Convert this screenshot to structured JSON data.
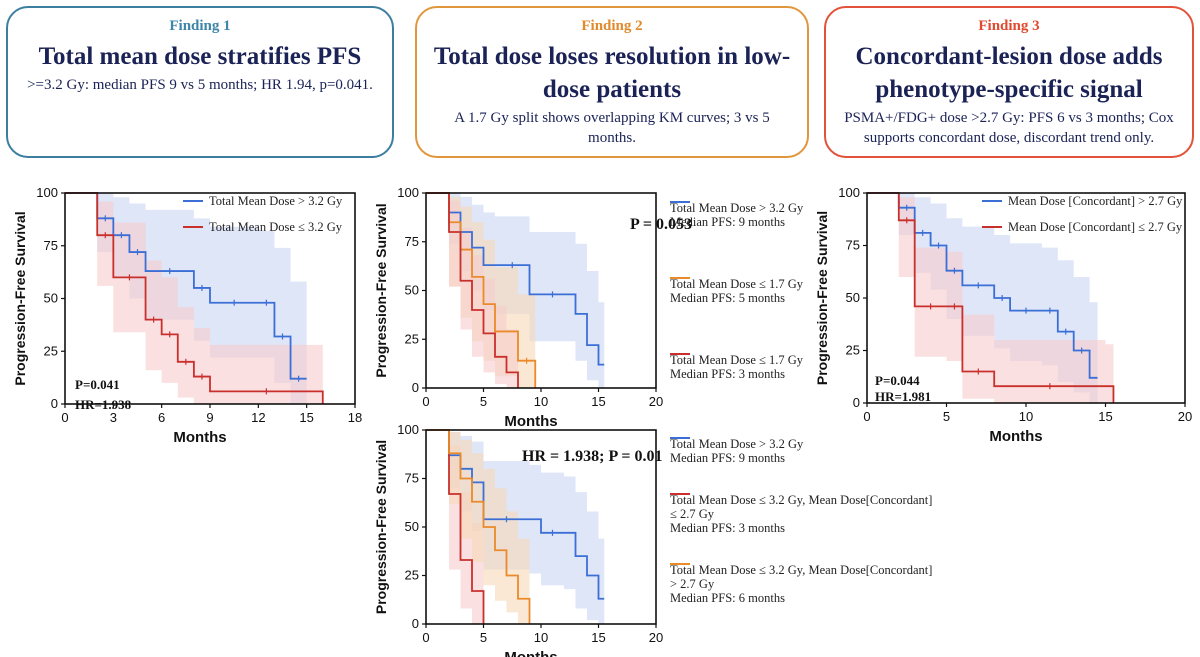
{
  "findings": [
    {
      "label": "Finding 1",
      "headline": "Total mean dose stratifies PFS",
      "body": ">=3.2 Gy: median PFS 9 vs 5 months; HR 1.94, p=0.041."
    },
    {
      "label": "Finding 2",
      "headline": "Total dose loses resolution in low-dose patients",
      "body": "A 1.7 Gy split shows overlapping KM curves; 3 vs 5 months."
    },
    {
      "label": "Finding 3",
      "headline": "Concordant-lesion dose adds phenotype-specific signal",
      "body": "PSMA+/FDG+ dose >2.7 Gy: PFS 6 vs 3 months; Cox supports concordant dose, discordant trend only."
    }
  ],
  "colors": {
    "blue": "#3b6fd6",
    "red": "#c9302c",
    "orange": "#ea8a2a",
    "blue_band": "#c8d6f4",
    "red_band": "#f6cccc",
    "orange_band": "#f7d9b8"
  },
  "chart_data": [
    {
      "id": "km1",
      "type": "line",
      "xlabel": "Months",
      "ylabel": "Progression-Free Survival",
      "xlim": [
        0,
        18
      ],
      "ylim": [
        0,
        100
      ],
      "xticks": [
        0,
        3,
        6,
        9,
        12,
        15,
        18
      ],
      "yticks": [
        0,
        25,
        50,
        75,
        100
      ],
      "legend_position": "top-right",
      "stats": [
        "P=0.041",
        "HR=1.938"
      ],
      "series": [
        {
          "name": "Total Mean Dose > 3.2 Gy",
          "color": "blue",
          "x": [
            0,
            2,
            3,
            4,
            5,
            8,
            9,
            12,
            13,
            14,
            15
          ],
          "y": [
            100,
            88,
            80,
            72,
            63,
            55,
            48,
            48,
            32,
            12,
            12
          ],
          "upper": [
            100,
            100,
            98,
            95,
            92,
            88,
            84,
            82,
            74,
            58,
            58
          ],
          "lower": [
            100,
            72,
            60,
            50,
            40,
            30,
            22,
            22,
            10,
            0,
            0
          ]
        },
        {
          "name": "Total Mean Dose ≤ 3.2 Gy",
          "color": "red",
          "x": [
            0,
            2,
            3,
            5,
            6,
            7,
            8,
            9,
            16
          ],
          "y": [
            100,
            80,
            60,
            40,
            33,
            20,
            13,
            6,
            0
          ],
          "upper": [
            100,
            96,
            86,
            68,
            60,
            46,
            36,
            28,
            28
          ],
          "lower": [
            100,
            56,
            34,
            16,
            10,
            3,
            0,
            0,
            0
          ]
        }
      ]
    },
    {
      "id": "km2",
      "type": "line",
      "xlabel": "Months",
      "ylabel": "Progression-Free Survival",
      "xlim": [
        0,
        20
      ],
      "ylim": [
        0,
        100
      ],
      "xticks": [
        0,
        5,
        10,
        15,
        20
      ],
      "yticks": [
        0,
        25,
        50,
        75,
        100
      ],
      "legend_position": "right",
      "stats": [
        "P = 0.053"
      ],
      "series": [
        {
          "name": "Total Mean Dose > 3.2 Gy",
          "note": "Median PFS: 9 months",
          "color": "blue",
          "x": [
            0,
            2,
            3,
            4,
            5,
            6,
            9,
            13,
            14,
            15,
            15.5
          ],
          "y": [
            100,
            90,
            80,
            72,
            63,
            63,
            48,
            38,
            22,
            12,
            12
          ],
          "upper": [
            100,
            100,
            98,
            94,
            90,
            88,
            80,
            74,
            60,
            44,
            44
          ],
          "lower": [
            100,
            74,
            60,
            50,
            40,
            38,
            24,
            14,
            4,
            0,
            0
          ]
        },
        {
          "name": "Total Mean Dose ≤ 1.7 Gy",
          "note": "Median PFS: 5 months",
          "color": "orange",
          "x": [
            0,
            2,
            3,
            4,
            5,
            6,
            7,
            8,
            9.5
          ],
          "y": [
            100,
            85,
            71,
            57,
            43,
            29,
            29,
            14,
            0
          ],
          "upper": [
            100,
            98,
            93,
            85,
            76,
            62,
            62,
            48,
            48
          ],
          "lower": [
            100,
            52,
            36,
            24,
            14,
            6,
            6,
            0,
            0
          ]
        },
        {
          "name": "Total Mean Dose ≤ 1.7 Gy",
          "note": "Median PFS: 3 months",
          "color": "red",
          "x": [
            0,
            2,
            3,
            4,
            5,
            6,
            7,
            8
          ],
          "y": [
            100,
            80,
            55,
            40,
            28,
            16,
            8,
            0
          ],
          "upper": [
            100,
            96,
            82,
            68,
            56,
            42,
            30,
            30
          ],
          "lower": [
            100,
            52,
            30,
            16,
            8,
            2,
            0,
            0
          ]
        }
      ]
    },
    {
      "id": "km3",
      "type": "line",
      "xlabel": "Months",
      "ylabel": "Progression-Free Survival",
      "xlim": [
        0,
        20
      ],
      "ylim": [
        0,
        100
      ],
      "xticks": [
        0,
        5,
        10,
        15,
        20
      ],
      "yticks": [
        0,
        25,
        50,
        75,
        100
      ],
      "legend_position": "right",
      "stats": [
        "HR = 1.938; P = 0.01"
      ],
      "series": [
        {
          "name": "Total Mean Dose > 3.2 Gy",
          "note": "Median PFS: 9 months",
          "color": "blue",
          "x": [
            0,
            2,
            3,
            4,
            5,
            9,
            10,
            12,
            13,
            14,
            15,
            15.5
          ],
          "y": [
            100,
            87,
            80,
            73,
            54,
            54,
            47,
            47,
            35,
            25,
            13,
            13
          ],
          "upper": [
            100,
            99,
            97,
            94,
            84,
            82,
            78,
            76,
            68,
            58,
            44,
            44
          ],
          "lower": [
            100,
            70,
            58,
            48,
            28,
            26,
            20,
            18,
            8,
            2,
            0,
            0
          ]
        },
        {
          "name": "Total Mean Dose ≤ 3.2 Gy, Mean Dose[Concordant] ≤ 2.7 Gy",
          "note": "Median PFS: 3 months",
          "color": "red",
          "x": [
            0,
            2,
            3,
            4,
            5
          ],
          "y": [
            100,
            67,
            33,
            17,
            0
          ],
          "upper": [
            100,
            92,
            68,
            52,
            52
          ],
          "lower": [
            100,
            28,
            8,
            0,
            0
          ]
        },
        {
          "name": "Total Mean Dose ≤ 3.2 Gy, Mean Dose[Concordant] > 2.7 Gy",
          "note": "Median PFS: 6 months",
          "color": "orange",
          "x": [
            0,
            2,
            3,
            4,
            5,
            6,
            7,
            8,
            9
          ],
          "y": [
            100,
            88,
            75,
            63,
            50,
            38,
            25,
            13,
            0
          ],
          "upper": [
            100,
            99,
            95,
            88,
            80,
            70,
            58,
            44,
            44
          ],
          "lower": [
            100,
            62,
            44,
            32,
            20,
            12,
            6,
            0,
            0
          ]
        }
      ]
    },
    {
      "id": "km4",
      "type": "line",
      "xlabel": "Months",
      "ylabel": "Progression-Free Survival",
      "xlim": [
        0,
        20
      ],
      "ylim": [
        0,
        100
      ],
      "xticks": [
        0,
        5,
        10,
        15,
        20
      ],
      "yticks": [
        0,
        25,
        50,
        75,
        100
      ],
      "legend_position": "top-right",
      "stats": [
        "P=0.044",
        "HR=1.981"
      ],
      "series": [
        {
          "name": "Mean Dose [Concordant] > 2.7 Gy",
          "color": "blue",
          "x": [
            0,
            2,
            3,
            4,
            5,
            6,
            8,
            9,
            11,
            12,
            13,
            14,
            14.5
          ],
          "y": [
            100,
            93,
            81,
            75,
            63,
            56,
            50,
            44,
            44,
            34,
            25,
            12,
            12
          ],
          "upper": [
            100,
            100,
            98,
            95,
            88,
            84,
            80,
            76,
            74,
            68,
            60,
            48,
            48
          ],
          "lower": [
            100,
            80,
            62,
            54,
            40,
            32,
            26,
            20,
            18,
            10,
            5,
            0,
            0
          ]
        },
        {
          "name": "Mean Dose [Concordant] ≤ 2.7 Gy",
          "color": "red",
          "x": [
            0,
            2,
            3,
            5,
            6,
            8,
            15,
            15.5
          ],
          "y": [
            100,
            87,
            46,
            46,
            15,
            8,
            8,
            0
          ],
          "upper": [
            100,
            98,
            74,
            72,
            42,
            30,
            28,
            28
          ],
          "lower": [
            100,
            60,
            22,
            20,
            2,
            0,
            0,
            0
          ]
        }
      ]
    }
  ]
}
